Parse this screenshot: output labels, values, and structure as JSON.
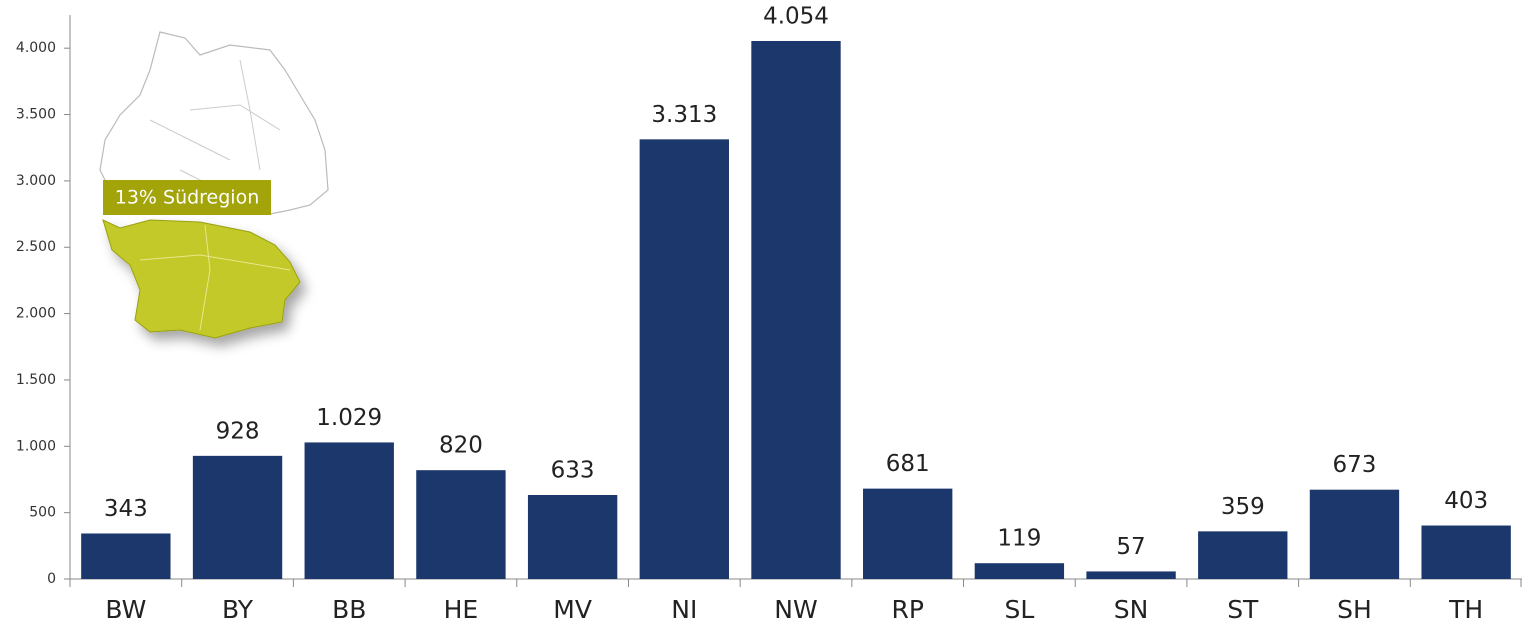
{
  "chart_data": {
    "type": "bar",
    "annotation": "13% Südregion",
    "categories": [
      "BW",
      "BY",
      "BB",
      "HE",
      "MV",
      "NI",
      "NW",
      "RP",
      "SL",
      "SN",
      "ST",
      "SH",
      "TH"
    ],
    "values": [
      343,
      928,
      1029,
      820,
      633,
      3313,
      4054,
      681,
      119,
      57,
      359,
      673,
      403
    ],
    "value_labels": [
      "343",
      "928",
      "1.029",
      "820",
      "633",
      "3.313",
      "4.054",
      "681",
      "119",
      "57",
      "359",
      "673",
      "403"
    ],
    "color": "#1b376b",
    "ylim": [
      0,
      4250
    ],
    "yticks": [
      0,
      500,
      {
        "value": 1000,
        "label": "1.000"
      },
      {
        "value": 1500,
        "label": "1.500"
      },
      {
        "value": 2000,
        "label": "2.000"
      },
      {
        "value": 2500,
        "label": "2.500"
      },
      {
        "value": 3000,
        "label": "3.000"
      },
      {
        "value": 3500,
        "label": "3.500"
      },
      {
        "value": 4000,
        "label": "4.000"
      }
    ],
    "grid": false
  }
}
